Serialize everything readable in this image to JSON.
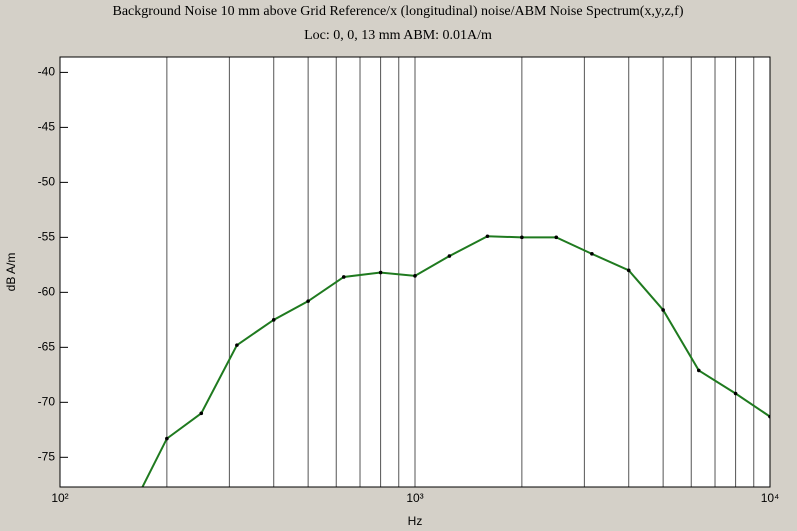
{
  "chart_data": {
    "type": "line",
    "title": "Background Noise 10 mm above Grid Reference/x (longitudinal)  noise/ABM Noise Spectrum(x,y,z,f)",
    "subtitle": "Loc: 0, 0, 13 mm ABM: 0.01A/m",
    "x_label": "Hz",
    "y_label": "dB A/m",
    "x_log": true,
    "x": [
      160,
      200,
      250,
      315,
      400,
      500,
      630,
      800,
      1000,
      1250,
      1600,
      2000,
      2500,
      3150,
      4000,
      5000,
      6300,
      8000,
      10000
    ],
    "series": [
      {
        "name": null,
        "color": "#1f7a1f",
        "values": [
          -79.5,
          -73.3,
          -71,
          -64.8,
          -62.5,
          -60.8,
          -58.6,
          -58.2,
          -58.5,
          -56.7,
          -54.9,
          -55,
          -55,
          -56.5,
          -58,
          -61.6,
          -67.1,
          -69.2,
          -71.3
        ]
      }
    ],
    "xlim": [
      100,
      10000
    ],
    "xticks": [
      {
        "value": 100,
        "label": "10²"
      },
      {
        "value": 1000,
        "label": "10³"
      },
      {
        "value": 10000,
        "label": "10⁴"
      }
    ],
    "x_grid_lines": [
      200,
      300,
      400,
      500,
      600,
      700,
      800,
      900,
      2000,
      3000,
      4000,
      5000,
      6000,
      7000,
      8000,
      9000
    ],
    "ylim": [
      -77.7,
      -38.6
    ],
    "yticks": [
      -40,
      -45,
      -50,
      -55,
      -60,
      -65,
      -70,
      -75
    ],
    "grid": true
  }
}
